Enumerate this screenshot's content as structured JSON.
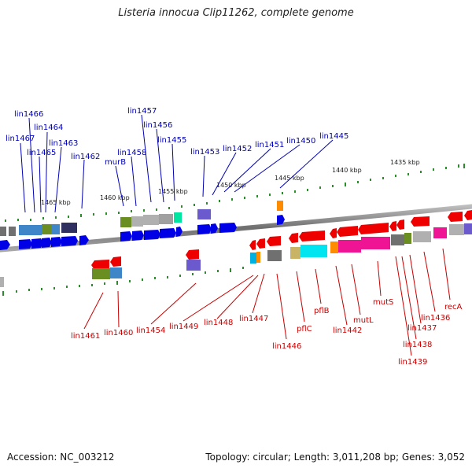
{
  "title": "Listeria innocua Clip11262, complete genome",
  "footer": {
    "accession": "Accession: NC_003212",
    "summary": "Topology: circular; Length: 3,011,208 bp; Genes: 3,052"
  },
  "colors": {
    "forward_label": "#0000b4",
    "reverse_label": "#c80000",
    "forward_gene": "#0000e6",
    "reverse_gene": "#ee0000",
    "backbone": "#808080",
    "ruler_tick": "#228b22"
  },
  "scale_labels": [
    "1465 kbp",
    "1460 kbp",
    "1455 kbp",
    "1450 kbp",
    "1445 kbp",
    "1440 kbp",
    "1435 kbp"
  ],
  "forward_genes": [
    "lin1466",
    "lin1467",
    "lin1464",
    "lin1465",
    "lin1463",
    "lin1462",
    "murB",
    "lin1457",
    "lin1458",
    "lin1456",
    "lin1455",
    "lin1453",
    "lin1452",
    "lin1451",
    "lin1450",
    "lin1445"
  ],
  "reverse_genes": [
    "lin1461",
    "lin1460",
    "lin1454",
    "lin1449",
    "lin1448",
    "lin1447",
    "lin1446",
    "pflC",
    "pflB",
    "lin1442",
    "mutL",
    "mutS",
    "lin1439",
    "lin1438",
    "lin1437",
    "lin1436",
    "recA"
  ]
}
